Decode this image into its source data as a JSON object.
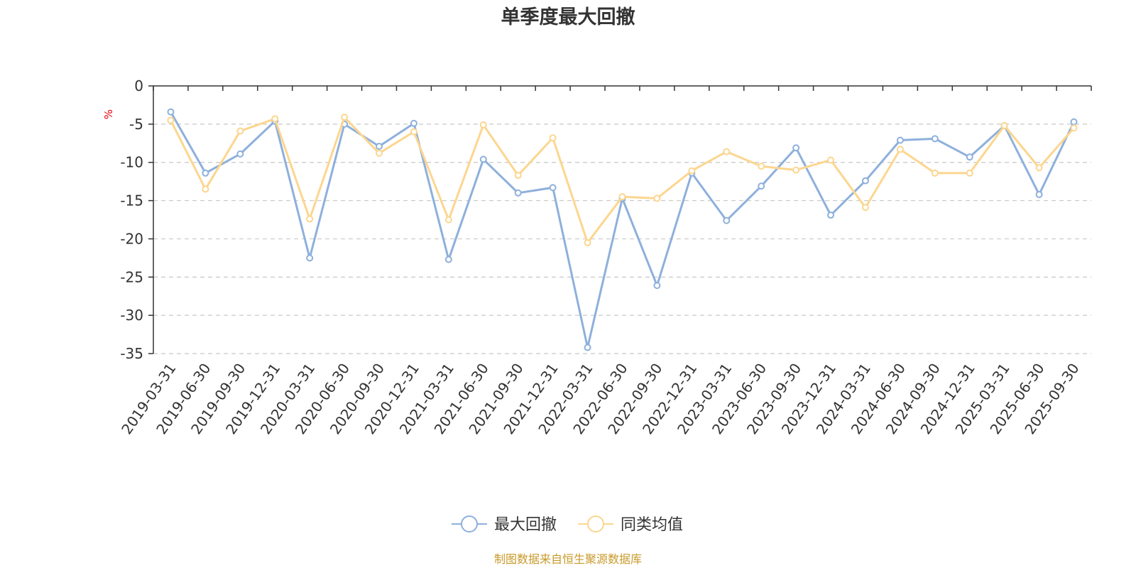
{
  "chart_data": {
    "type": "line",
    "title": "单季度最大回撤",
    "unit_label": "%",
    "ylim": [
      -35,
      0
    ],
    "y_ticks": [
      0,
      -5,
      -10,
      -15,
      -20,
      -25,
      -30,
      -35
    ],
    "grid": "horizontal dashed",
    "categories": [
      "2019-03-31",
      "2019-06-30",
      "2019-09-30",
      "2019-12-31",
      "2020-03-31",
      "2020-06-30",
      "2020-09-30",
      "2020-12-31",
      "2021-03-31",
      "2021-06-30",
      "2021-09-30",
      "2021-12-31",
      "2022-03-31",
      "2022-06-30",
      "2022-09-30",
      "2022-12-31",
      "2023-03-31",
      "2023-06-30",
      "2023-09-30",
      "2023-12-31",
      "2024-03-31",
      "2024-06-30",
      "2024-09-30",
      "2024-12-31",
      "2025-03-31",
      "2025-06-30",
      "2025-09-30"
    ],
    "series": [
      {
        "name": "最大回撤",
        "color": "#8eb0dc",
        "values": [
          -3.4,
          -11.4,
          -8.9,
          -4.6,
          -22.5,
          -5.0,
          -7.9,
          -4.9,
          -22.7,
          -9.6,
          -14.0,
          -13.3,
          -34.2,
          -14.7,
          -26.1,
          -11.4,
          -17.6,
          -13.1,
          -8.1,
          -16.9,
          -12.4,
          -7.1,
          -6.9,
          -9.3,
          -5.2,
          -14.2,
          -4.7
        ]
      },
      {
        "name": "同类均值",
        "color": "#fcd68f",
        "values": [
          -4.5,
          -13.5,
          -5.9,
          -4.3,
          -17.4,
          -4.1,
          -8.8,
          -6.0,
          -17.5,
          -5.1,
          -11.7,
          -6.8,
          -20.5,
          -14.5,
          -14.7,
          -11.1,
          -8.6,
          -10.5,
          -11.0,
          -9.7,
          -15.9,
          -8.3,
          -11.4,
          -11.4,
          -5.2,
          -10.7,
          -5.5
        ]
      }
    ],
    "legend": "bottom-center",
    "source": "制图数据来自恒生聚源数据库"
  }
}
